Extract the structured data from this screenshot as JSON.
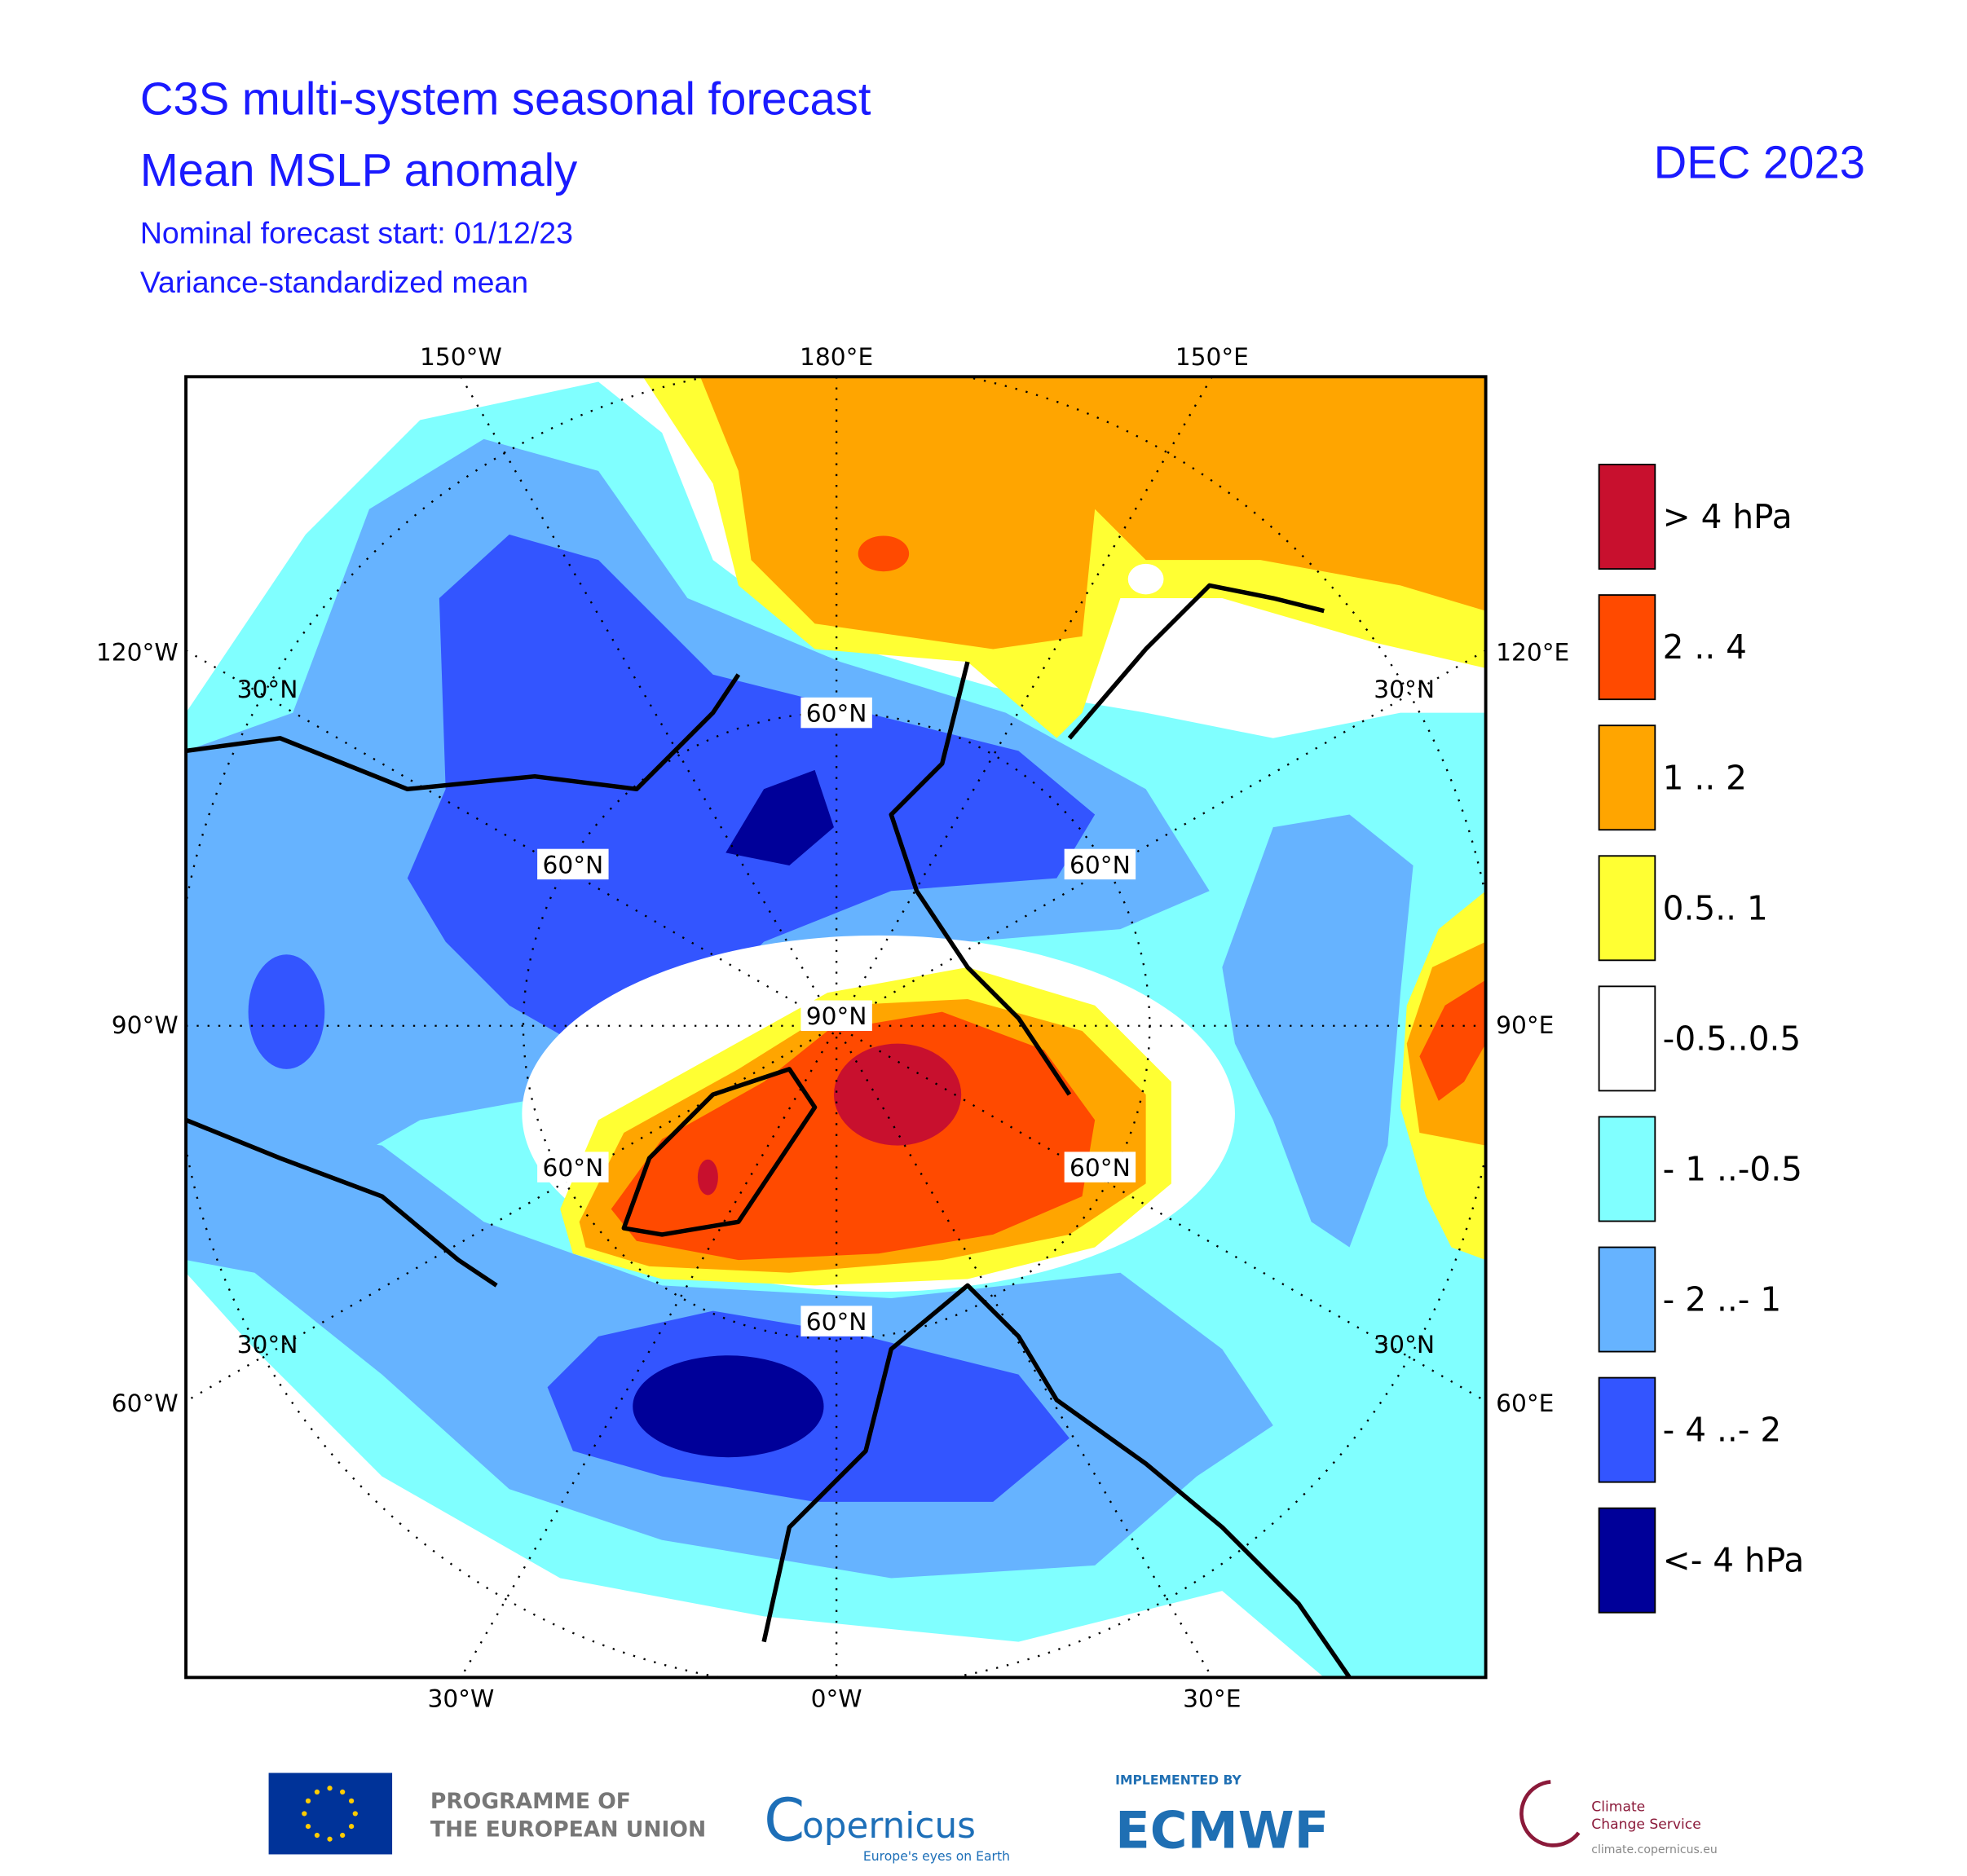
{
  "header": {
    "title": "C3S multi-system seasonal forecast",
    "subtitle": "Mean MSLP anomaly",
    "forecast_start": "Nominal forecast start: 01/12/23",
    "note": "Variance-standardized mean",
    "date": "DEC 2023"
  },
  "map": {
    "longitude_labels": {
      "top": [
        "150°W",
        "180°E",
        "150°E"
      ],
      "left": [
        "120°W",
        "90°W",
        "60°W"
      ],
      "right": [
        "120°E",
        "90°E",
        "60°E"
      ],
      "bottom": [
        "30°W",
        "0°W",
        "30°E"
      ]
    },
    "latitude_labels": [
      "30°N",
      "30°N",
      "30°N",
      "30°N",
      "60°N",
      "60°N",
      "60°N",
      "60°N",
      "60°N",
      "60°N",
      "90°N"
    ]
  },
  "legend": {
    "items": [
      {
        "label": ">  4 hPa",
        "color": "#c8102e"
      },
      {
        "label": "2 .. 4",
        "color": "#ff4a00"
      },
      {
        "label": "1 .. 2",
        "color": "#ffa500"
      },
      {
        "label": "0.5.. 1",
        "color": "#ffff33"
      },
      {
        "label": "-0.5..0.5",
        "color": "#ffffff"
      },
      {
        "label": "- 1 ..-0.5",
        "color": "#80ffff"
      },
      {
        "label": "- 2 ..- 1",
        "color": "#66b3ff"
      },
      {
        "label": "- 4 ..- 2",
        "color": "#3355ff"
      },
      {
        "label": "<- 4 hPa",
        "color": "#000099"
      }
    ]
  },
  "footer": {
    "eu_line1": "PROGRAMME OF",
    "eu_line2": "THE EUROPEAN UNION",
    "copernicus_c": "C",
    "copernicus": "opernicus",
    "copernicus_tagline": "Europe's eyes on Earth",
    "implemented_by": "IMPLEMENTED BY",
    "ecmwf": "ECMWF",
    "c3s_line1": "Climate",
    "c3s_line2": "Change Service",
    "c3s_url": "climate.copernicus.eu"
  }
}
